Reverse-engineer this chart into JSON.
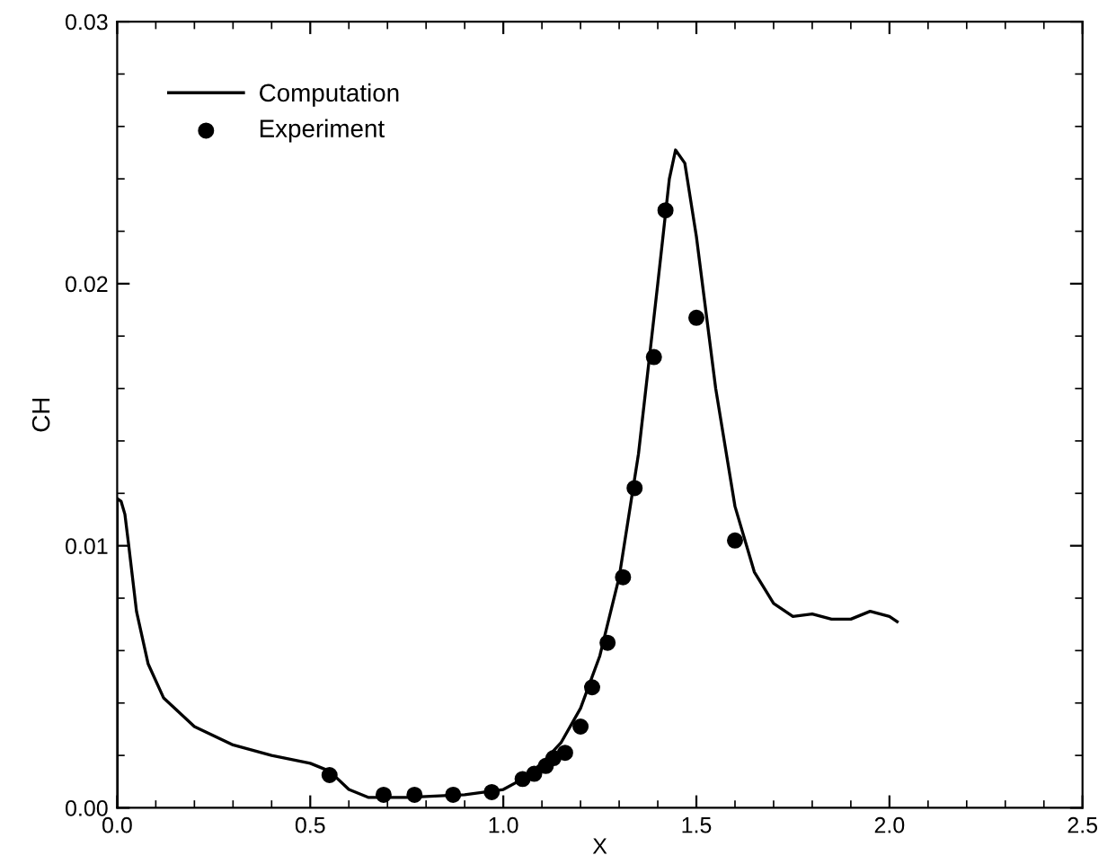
{
  "chart_data": {
    "type": "line",
    "xlabel": "X",
    "ylabel": "CH",
    "xlim": [
      0,
      2.5
    ],
    "xticks": [
      {
        "value": 0,
        "label": "0.0"
      },
      0.5,
      {
        "value": 1,
        "label": "1.0"
      },
      1.5,
      {
        "value": 2,
        "label": "2.0"
      },
      2.5
    ],
    "ylim": [
      0,
      0.03
    ],
    "yticks": [
      {
        "value": 0,
        "label": "0.00"
      },
      0.01,
      0.02,
      0.03
    ],
    "grid": false,
    "legend": "top left",
    "series": [
      {
        "name": "Computation",
        "color": "#000000",
        "marker": "none",
        "line_style": "solid",
        "x": [
          0,
          0,
          0.01,
          0.02,
          0.03,
          0.05,
          0.08,
          0.12,
          0.2,
          0.3,
          0.4,
          0.5,
          0.55,
          0.6,
          0.65,
          0.75,
          0.9,
          1.0,
          1.05,
          1.1,
          1.15,
          1.2,
          1.25,
          1.3,
          1.35,
          1.4,
          1.43,
          1.446,
          1.47,
          1.5,
          1.55,
          1.6,
          1.65,
          1.7,
          1.75,
          1.8,
          1.85,
          1.9,
          1.95,
          2.0,
          2.02
        ],
        "values": [
          0,
          0.0118,
          0.0117,
          0.0112,
          0.01,
          0.0075,
          0.0055,
          0.0042,
          0.0031,
          0.0024,
          0.002,
          0.0017,
          0.0014,
          0.0007,
          0.0004,
          0.0004,
          0.0005,
          0.0007,
          0.0011,
          0.0017,
          0.0025,
          0.0038,
          0.0058,
          0.0088,
          0.0135,
          0.02,
          0.024,
          0.0251,
          0.0246,
          0.0218,
          0.016,
          0.0115,
          0.009,
          0.0078,
          0.0073,
          0.0074,
          0.0072,
          0.0072,
          0.0075,
          0.0073,
          0.0071
        ]
      },
      {
        "name": "Experiment",
        "type": "scatter",
        "color": "#000000",
        "marker": "circle",
        "x": [
          0.55,
          0.69,
          0.77,
          0.87,
          0.97,
          1.05,
          1.08,
          1.11,
          1.13,
          1.16,
          1.2,
          1.23,
          1.27,
          1.31,
          1.34,
          1.39,
          1.42,
          1.5,
          1.6
        ],
        "values": [
          0.00125,
          0.0005,
          0.0005,
          0.0005,
          0.0006,
          0.0011,
          0.0013,
          0.0016,
          0.0019,
          0.0021,
          0.0031,
          0.0046,
          0.0063,
          0.0088,
          0.0122,
          0.0172,
          0.0228,
          0.0187,
          0.0102
        ]
      }
    ]
  }
}
